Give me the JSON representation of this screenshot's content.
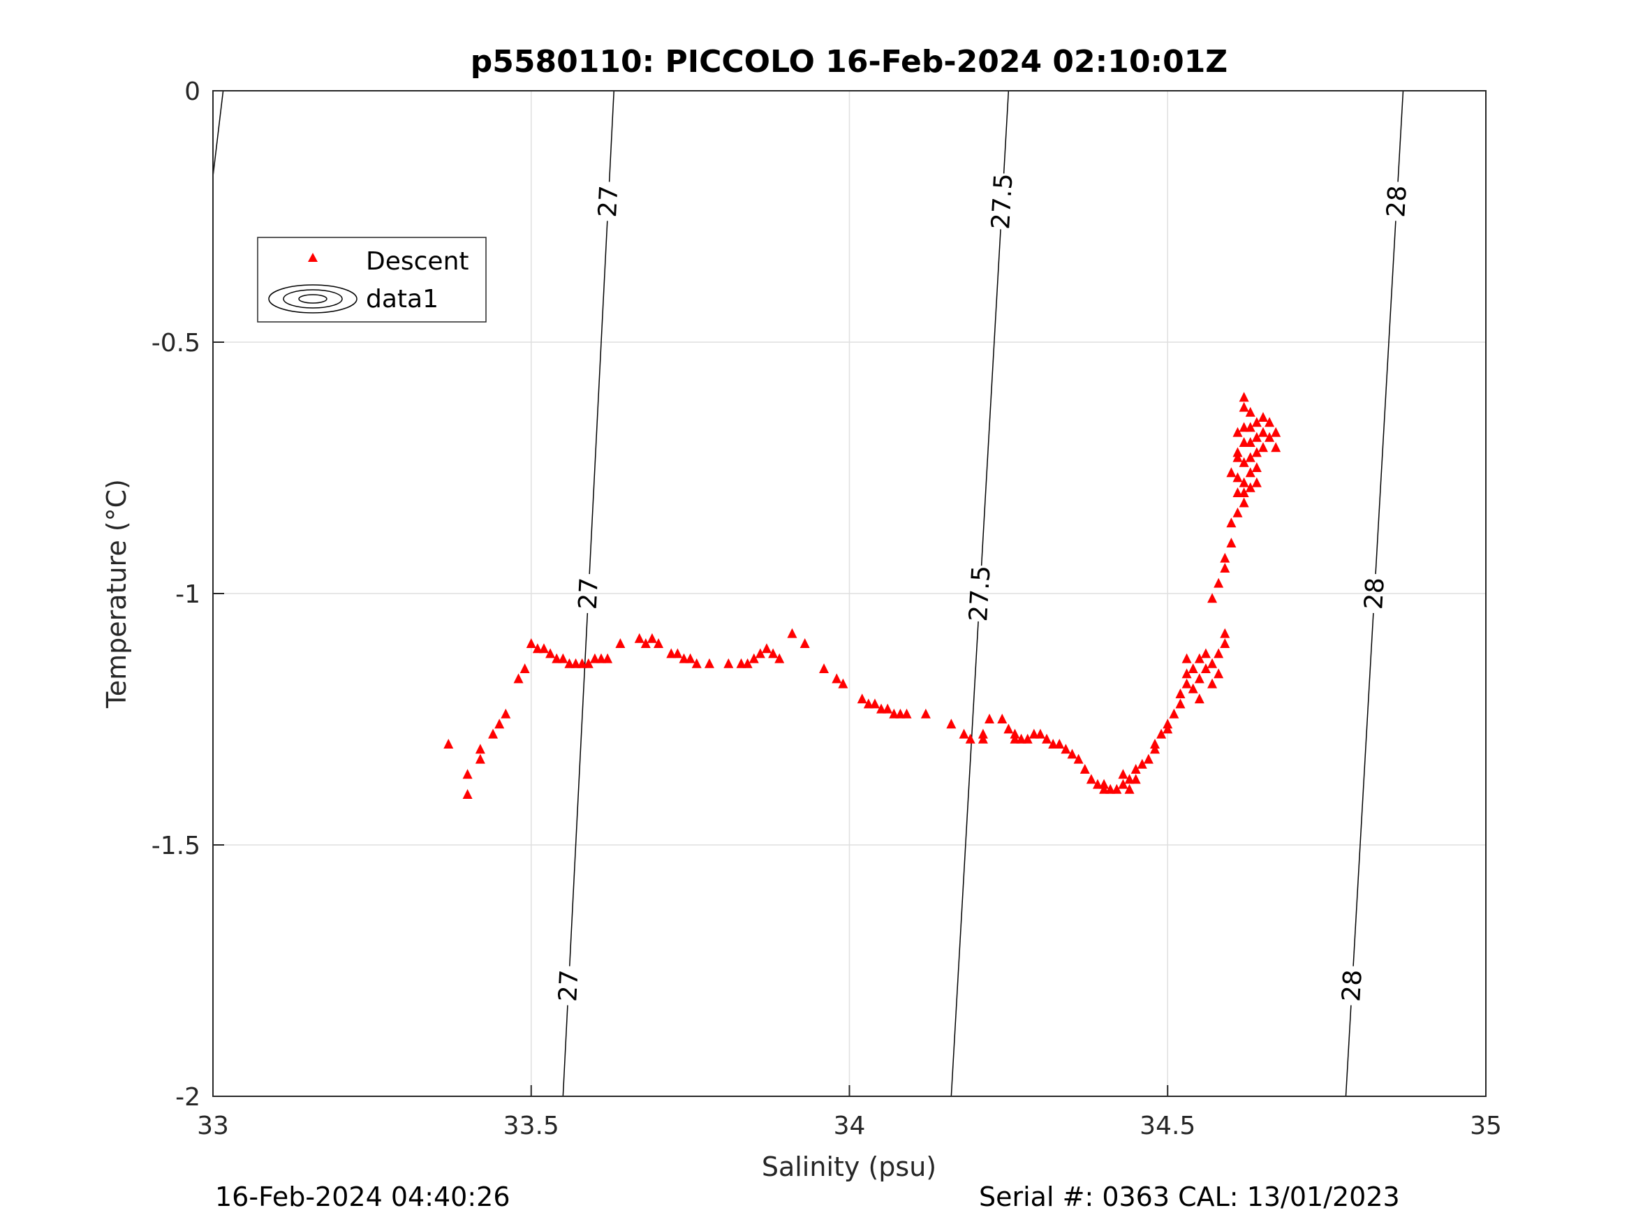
{
  "title": "p5580110: PICCOLO 16-Feb-2024 02:10:01Z",
  "footer_left": "16-Feb-2024 04:40:26",
  "footer_right": "Serial #: 0363  CAL: 13/01/2023",
  "colors": {
    "descent": "#ff0000",
    "contour": "#000000",
    "grid": "#dfdfdf",
    "axis": "#262626"
  },
  "chart_data": {
    "type": "scatter",
    "xlabel": "Salinity (psu)",
    "ylabel": "Temperature (°C)",
    "xlim": [
      33,
      35
    ],
    "ylim": [
      -2,
      0
    ],
    "xticks": [
      33,
      33.5,
      34,
      34.5,
      35
    ],
    "xtick_labels": [
      "33",
      "33.5",
      "34",
      "34.5",
      "35"
    ],
    "yticks": [
      0,
      -0.5,
      -1,
      -1.5,
      -2
    ],
    "ytick_labels": [
      "0",
      "-0.5",
      "-1",
      "-1.5",
      "-2"
    ],
    "grid": true,
    "legend": {
      "placement": "top-left",
      "entries": [
        "Descent",
        "data1"
      ]
    },
    "series": [
      {
        "name": "Descent",
        "marker": "triangle",
        "points": [
          [
            33.37,
            -1.3
          ],
          [
            33.4,
            -1.4
          ],
          [
            33.4,
            -1.36
          ],
          [
            33.42,
            -1.33
          ],
          [
            33.42,
            -1.31
          ],
          [
            33.44,
            -1.28
          ],
          [
            33.45,
            -1.26
          ],
          [
            33.46,
            -1.24
          ],
          [
            33.48,
            -1.17
          ],
          [
            33.49,
            -1.15
          ],
          [
            33.5,
            -1.1
          ],
          [
            33.51,
            -1.11
          ],
          [
            33.52,
            -1.11
          ],
          [
            33.53,
            -1.12
          ],
          [
            33.54,
            -1.13
          ],
          [
            33.55,
            -1.13
          ],
          [
            33.56,
            -1.14
          ],
          [
            33.57,
            -1.14
          ],
          [
            33.58,
            -1.14
          ],
          [
            33.59,
            -1.14
          ],
          [
            33.6,
            -1.13
          ],
          [
            33.61,
            -1.13
          ],
          [
            33.62,
            -1.13
          ],
          [
            33.64,
            -1.1
          ],
          [
            33.67,
            -1.09
          ],
          [
            33.68,
            -1.1
          ],
          [
            33.69,
            -1.09
          ],
          [
            33.7,
            -1.1
          ],
          [
            33.72,
            -1.12
          ],
          [
            33.73,
            -1.12
          ],
          [
            33.74,
            -1.13
          ],
          [
            33.75,
            -1.13
          ],
          [
            33.76,
            -1.14
          ],
          [
            33.78,
            -1.14
          ],
          [
            33.81,
            -1.14
          ],
          [
            33.83,
            -1.14
          ],
          [
            33.84,
            -1.14
          ],
          [
            33.85,
            -1.13
          ],
          [
            33.86,
            -1.12
          ],
          [
            33.87,
            -1.11
          ],
          [
            33.88,
            -1.12
          ],
          [
            33.89,
            -1.13
          ],
          [
            33.91,
            -1.08
          ],
          [
            33.93,
            -1.1
          ],
          [
            33.96,
            -1.15
          ],
          [
            33.98,
            -1.17
          ],
          [
            33.99,
            -1.18
          ],
          [
            34.02,
            -1.21
          ],
          [
            34.03,
            -1.22
          ],
          [
            34.04,
            -1.22
          ],
          [
            34.05,
            -1.23
          ],
          [
            34.06,
            -1.23
          ],
          [
            34.07,
            -1.24
          ],
          [
            34.08,
            -1.24
          ],
          [
            34.09,
            -1.24
          ],
          [
            34.12,
            -1.24
          ],
          [
            34.16,
            -1.26
          ],
          [
            34.18,
            -1.28
          ],
          [
            34.19,
            -1.29
          ],
          [
            34.21,
            -1.29
          ],
          [
            34.21,
            -1.28
          ],
          [
            34.22,
            -1.25
          ],
          [
            34.24,
            -1.25
          ],
          [
            34.25,
            -1.27
          ],
          [
            34.26,
            -1.28
          ],
          [
            34.26,
            -1.29
          ],
          [
            34.27,
            -1.29
          ],
          [
            34.28,
            -1.29
          ],
          [
            34.29,
            -1.28
          ],
          [
            34.3,
            -1.28
          ],
          [
            34.31,
            -1.29
          ],
          [
            34.32,
            -1.3
          ],
          [
            34.33,
            -1.3
          ],
          [
            34.34,
            -1.31
          ],
          [
            34.35,
            -1.32
          ],
          [
            34.36,
            -1.33
          ],
          [
            34.37,
            -1.35
          ],
          [
            34.38,
            -1.37
          ],
          [
            34.39,
            -1.38
          ],
          [
            34.4,
            -1.39
          ],
          [
            34.4,
            -1.38
          ],
          [
            34.41,
            -1.39
          ],
          [
            34.42,
            -1.39
          ],
          [
            34.43,
            -1.38
          ],
          [
            34.43,
            -1.36
          ],
          [
            34.44,
            -1.37
          ],
          [
            34.44,
            -1.39
          ],
          [
            34.45,
            -1.37
          ],
          [
            34.45,
            -1.35
          ],
          [
            34.46,
            -1.34
          ],
          [
            34.47,
            -1.33
          ],
          [
            34.48,
            -1.31
          ],
          [
            34.48,
            -1.3
          ],
          [
            34.49,
            -1.28
          ],
          [
            34.5,
            -1.27
          ],
          [
            34.5,
            -1.26
          ],
          [
            34.51,
            -1.24
          ],
          [
            34.52,
            -1.22
          ],
          [
            34.52,
            -1.2
          ],
          [
            34.53,
            -1.18
          ],
          [
            34.53,
            -1.16
          ],
          [
            34.53,
            -1.13
          ],
          [
            34.54,
            -1.15
          ],
          [
            34.54,
            -1.19
          ],
          [
            34.55,
            -1.21
          ],
          [
            34.55,
            -1.17
          ],
          [
            34.55,
            -1.13
          ],
          [
            34.56,
            -1.12
          ],
          [
            34.56,
            -1.15
          ],
          [
            34.57,
            -1.18
          ],
          [
            34.57,
            -1.14
          ],
          [
            34.58,
            -1.16
          ],
          [
            34.58,
            -1.12
          ],
          [
            34.59,
            -1.1
          ],
          [
            34.59,
            -1.08
          ],
          [
            34.57,
            -1.01
          ],
          [
            34.58,
            -0.98
          ],
          [
            34.59,
            -0.95
          ],
          [
            34.59,
            -0.93
          ],
          [
            34.6,
            -0.9
          ],
          [
            34.6,
            -0.86
          ],
          [
            34.61,
            -0.84
          ],
          [
            34.61,
            -0.8
          ],
          [
            34.61,
            -0.77
          ],
          [
            34.61,
            -0.73
          ],
          [
            34.62,
            -0.7
          ],
          [
            34.62,
            -0.67
          ],
          [
            34.62,
            -0.63
          ],
          [
            34.62,
            -0.61
          ],
          [
            34.63,
            -0.64
          ],
          [
            34.63,
            -0.67
          ],
          [
            34.63,
            -0.7
          ],
          [
            34.63,
            -0.73
          ],
          [
            34.64,
            -0.66
          ],
          [
            34.64,
            -0.69
          ],
          [
            34.64,
            -0.72
          ],
          [
            34.64,
            -0.75
          ],
          [
            34.65,
            -0.65
          ],
          [
            34.65,
            -0.68
          ],
          [
            34.65,
            -0.71
          ],
          [
            34.66,
            -0.66
          ],
          [
            34.66,
            -0.69
          ],
          [
            34.67,
            -0.68
          ],
          [
            34.67,
            -0.71
          ],
          [
            34.62,
            -0.74
          ],
          [
            34.62,
            -0.78
          ],
          [
            34.62,
            -0.82
          ],
          [
            34.63,
            -0.79
          ],
          [
            34.63,
            -0.76
          ],
          [
            34.61,
            -0.68
          ],
          [
            34.61,
            -0.72
          ],
          [
            34.64,
            -0.78
          ],
          [
            34.6,
            -0.76
          ],
          [
            34.62,
            -0.8
          ]
        ]
      }
    ],
    "contours": [
      {
        "level": 27,
        "labels": [
          "27",
          "27",
          "27"
        ],
        "ends": [
          [
            33.55,
            -2
          ],
          [
            33.63,
            0
          ]
        ]
      },
      {
        "level": 27.5,
        "labels": [
          "27.5",
          "27.5"
        ],
        "ends": [
          [
            34.16,
            -2
          ],
          [
            34.25,
            0
          ]
        ]
      },
      {
        "level": 28,
        "labels": [
          "28",
          "28",
          "28"
        ],
        "ends": [
          [
            34.78,
            -2
          ],
          [
            34.87,
            0
          ]
        ]
      }
    ]
  }
}
